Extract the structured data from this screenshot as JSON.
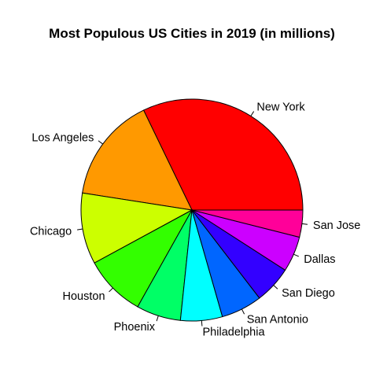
{
  "chart_data": {
    "type": "pie",
    "title": "Most Populous US Cities in 2019 (in millions)",
    "start_angle_deg": 0,
    "direction": "counterclockwise",
    "slices": [
      {
        "label": "New York",
        "value": 8.34,
        "color": "#FF0000"
      },
      {
        "label": "Los Angeles",
        "value": 3.98,
        "color": "#FF9900"
      },
      {
        "label": "Chicago",
        "value": 2.69,
        "color": "#CCFF00"
      },
      {
        "label": "Houston",
        "value": 2.32,
        "color": "#33FF00"
      },
      {
        "label": "Phoenix",
        "value": 1.68,
        "color": "#00FF66"
      },
      {
        "label": "Philadelphia",
        "value": 1.58,
        "color": "#00FFFF"
      },
      {
        "label": "San Antonio",
        "value": 1.55,
        "color": "#0066FF"
      },
      {
        "label": "San Diego",
        "value": 1.42,
        "color": "#3300FF"
      },
      {
        "label": "Dallas",
        "value": 1.34,
        "color": "#CC00FF"
      },
      {
        "label": "San Jose",
        "value": 1.02,
        "color": "#FF0099"
      }
    ]
  }
}
